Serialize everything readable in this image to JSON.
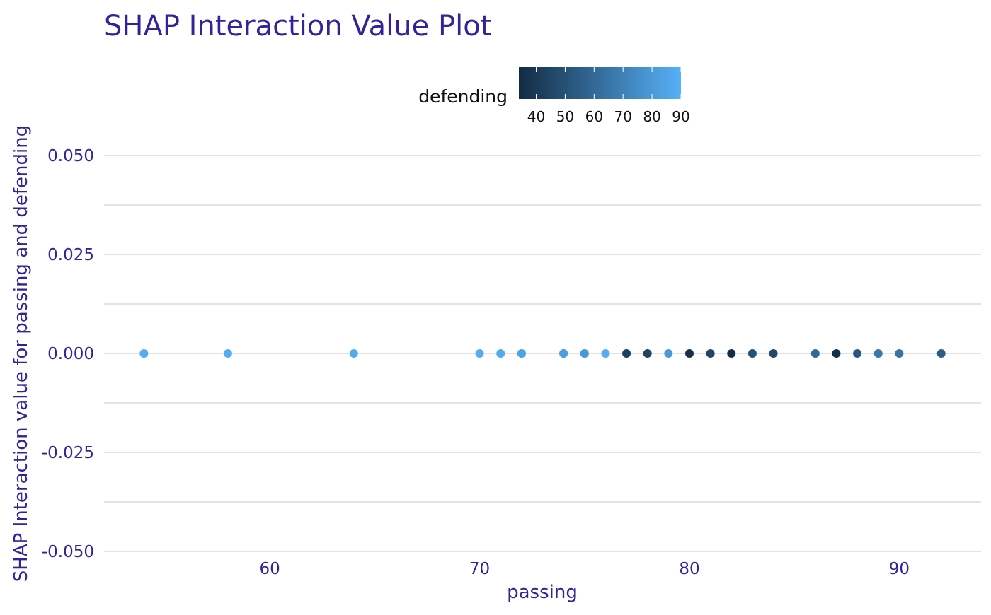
{
  "chart_data": {
    "type": "scatter",
    "title": "SHAP Interaction Value Plot",
    "xlabel": "passing",
    "ylabel": "SHAP Interaction value for passing and defending",
    "xlim": [
      52.1,
      93.9
    ],
    "ylim": [
      -0.05,
      0.05
    ],
    "x_ticks": [
      60,
      70,
      80,
      90
    ],
    "x_tick_labels": [
      "60",
      "70",
      "80",
      "90"
    ],
    "y_ticks": [
      0.05,
      0.025,
      0.0,
      -0.025,
      -0.05
    ],
    "y_tick_labels": [
      "0.050",
      "0.025",
      "0.000",
      "-0.025",
      "-0.050"
    ],
    "grid": true,
    "legend": {
      "title": "defending",
      "placement": "top",
      "range": [
        34,
        90
      ],
      "ticks": [
        40,
        50,
        60,
        70,
        80,
        90
      ],
      "tick_labels": [
        "40",
        "50",
        "60",
        "70",
        "80",
        "90"
      ],
      "color_low": "#132b43",
      "color_high": "#56b1f7"
    },
    "points": [
      {
        "x": 54,
        "y": 0.0,
        "color_value": 88
      },
      {
        "x": 58,
        "y": 0.0,
        "color_value": 88
      },
      {
        "x": 64,
        "y": 0.0,
        "color_value": 87
      },
      {
        "x": 70,
        "y": 0.0,
        "color_value": 88
      },
      {
        "x": 71,
        "y": 0.0,
        "color_value": 87
      },
      {
        "x": 72,
        "y": 0.0,
        "color_value": 86
      },
      {
        "x": 72,
        "y": 0.0,
        "color_value": 84
      },
      {
        "x": 74,
        "y": 0.0,
        "color_value": 85
      },
      {
        "x": 74,
        "y": 0.0,
        "color_value": 82
      },
      {
        "x": 75,
        "y": 0.0,
        "color_value": 85
      },
      {
        "x": 75,
        "y": 0.0,
        "color_value": 80
      },
      {
        "x": 76,
        "y": 0.0,
        "color_value": 88
      },
      {
        "x": 77,
        "y": 0.0,
        "color_value": 42
      },
      {
        "x": 78,
        "y": 0.0,
        "color_value": 44
      },
      {
        "x": 79,
        "y": 0.0,
        "color_value": 80
      },
      {
        "x": 80,
        "y": 0.0,
        "color_value": 36
      },
      {
        "x": 81,
        "y": 0.0,
        "color_value": 45
      },
      {
        "x": 82,
        "y": 0.0,
        "color_value": 35
      },
      {
        "x": 83,
        "y": 0.0,
        "color_value": 50
      },
      {
        "x": 84,
        "y": 0.0,
        "color_value": 46
      },
      {
        "x": 86,
        "y": 0.0,
        "color_value": 60
      },
      {
        "x": 87,
        "y": 0.0,
        "color_value": 36
      },
      {
        "x": 88,
        "y": 0.0,
        "color_value": 52
      },
      {
        "x": 89,
        "y": 0.0,
        "color_value": 66
      },
      {
        "x": 90,
        "y": 0.0,
        "color_value": 64
      },
      {
        "x": 92,
        "y": 0.0,
        "color_value": 55
      }
    ]
  }
}
